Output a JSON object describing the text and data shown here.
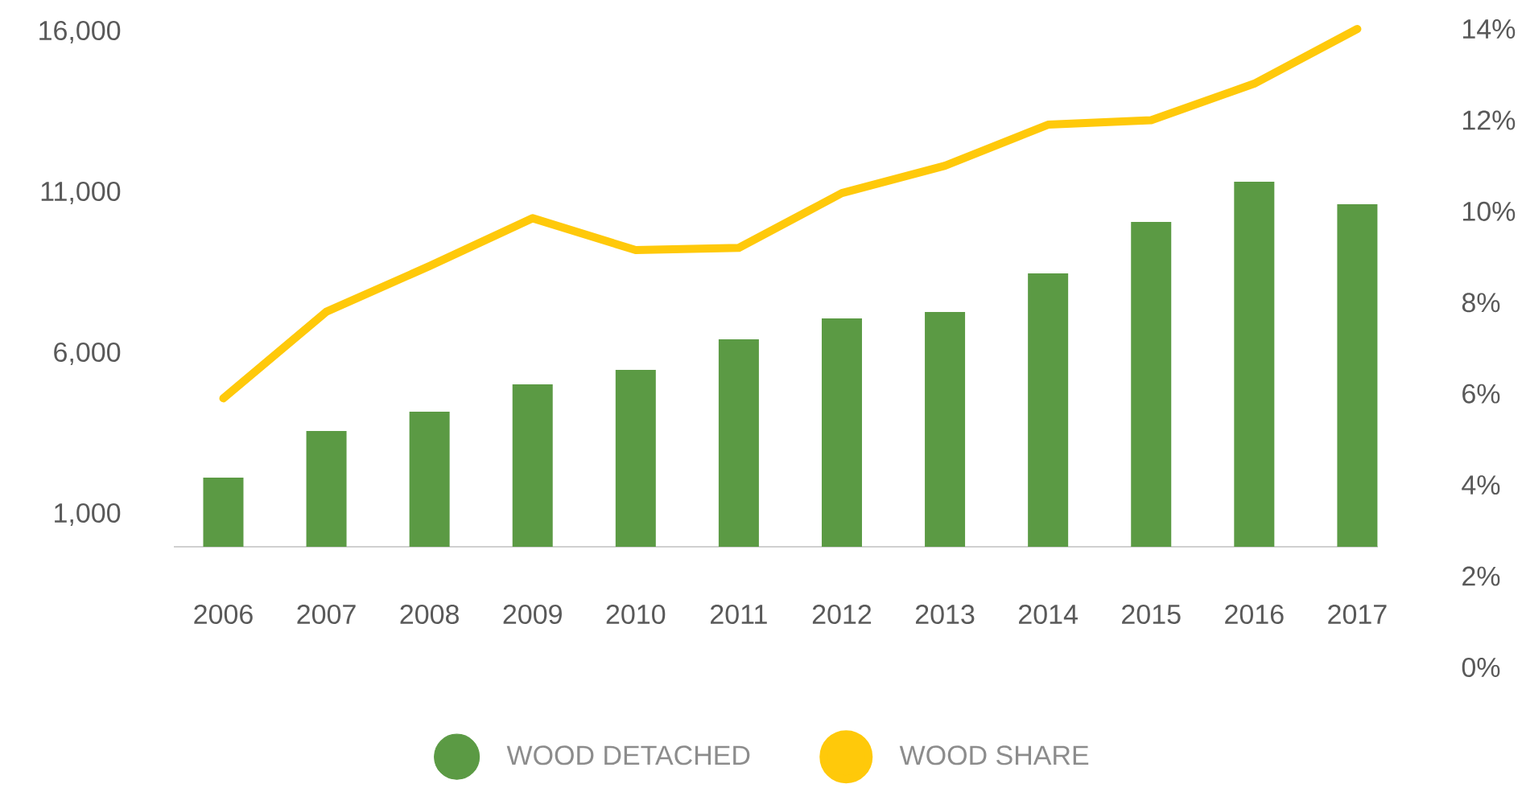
{
  "chart_data": {
    "type": "bar",
    "categories": [
      "2006",
      "2007",
      "2008",
      "2009",
      "2010",
      "2011",
      "2012",
      "2013",
      "2014",
      "2015",
      "2016",
      "2017"
    ],
    "series": [
      {
        "name": "WOOD DETACHED",
        "color": "#5b9a44",
        "values": [
          2150,
          3600,
          4200,
          5050,
          5500,
          6450,
          7100,
          7300,
          8500,
          10100,
          11350,
          10650
        ]
      },
      {
        "name": "WOOD SHARE",
        "type": "line",
        "axis": "y2",
        "color": "#ffc90a",
        "values": [
          5.9,
          7.8,
          8.8,
          9.85,
          9.15,
          9.2,
          10.4,
          11.0,
          11.9,
          12.0,
          12.8,
          14.0
        ]
      }
    ],
    "ylim": [
      0,
      16000
    ],
    "yticks": [
      {
        "value": 1000,
        "label": "1,000"
      },
      {
        "value": 6000,
        "label": "6,000"
      },
      {
        "value": 11000,
        "label": "11,000"
      },
      {
        "value": 16000,
        "label": "16,000"
      }
    ],
    "y2lim": [
      0,
      14
    ],
    "y2ticks": [
      {
        "value": 0,
        "label": "0%"
      },
      {
        "value": 2,
        "label": "2%"
      },
      {
        "value": 4,
        "label": "4%"
      },
      {
        "value": 6,
        "label": "6%"
      },
      {
        "value": 8,
        "label": "8%"
      },
      {
        "value": 10,
        "label": "10%"
      },
      {
        "value": 12,
        "label": "12%"
      },
      {
        "value": 14,
        "label": "14%"
      }
    ],
    "legend": "bottom",
    "grid": false
  }
}
